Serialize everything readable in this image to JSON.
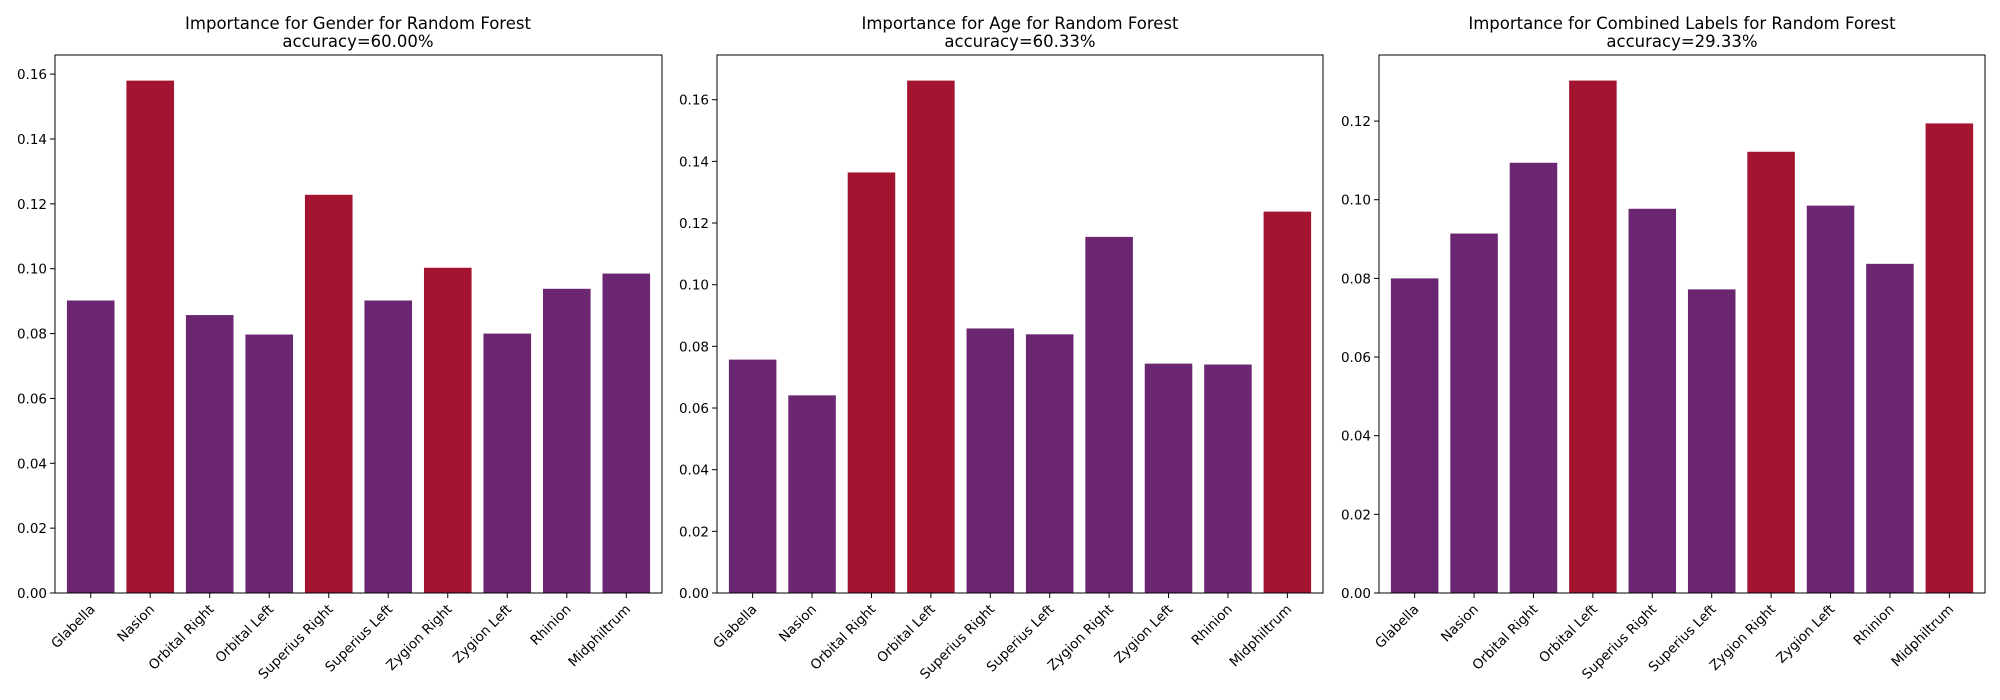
{
  "colors": {
    "normal_bar": "#6b2672",
    "top_bar": "#a31431",
    "axes": "#000000",
    "background": "#ffffff"
  },
  "chart_data": [
    {
      "type": "bar",
      "title": "Importance for Gender for Random Forest",
      "subtitle": "accuracy=60.00%",
      "categories": [
        "Glabella",
        "Nasion",
        "Orbital Right",
        "Orbital Left",
        "Superius Right",
        "Superius Left",
        "Zygion Right",
        "Zygion Left",
        "Rhinion",
        "Midphiltrum"
      ],
      "values": [
        0.0902,
        0.158,
        0.0857,
        0.0797,
        0.1228,
        0.0902,
        0.1003,
        0.08,
        0.0938,
        0.0985
      ],
      "highlighted": [
        false,
        true,
        false,
        false,
        true,
        false,
        true,
        false,
        false,
        false
      ],
      "xlabel": "",
      "ylabel": "",
      "ylim": [
        0,
        0.1659
      ],
      "yticks": [
        "0.00",
        "0.02",
        "0.04",
        "0.06",
        "0.08",
        "0.10",
        "0.12",
        "0.14",
        "0.16"
      ],
      "grid": false
    },
    {
      "type": "bar",
      "title": "Importance for Age for Random Forest",
      "subtitle": "accuracy=60.33%",
      "categories": [
        "Glabella",
        "Nasion",
        "Orbital Right",
        "Orbital Left",
        "Superius Right",
        "Superius Left",
        "Zygion Right",
        "Zygion Left",
        "Rhinion",
        "Midphiltrum"
      ],
      "values": [
        0.0757,
        0.0641,
        0.1364,
        0.1662,
        0.0858,
        0.0839,
        0.1155,
        0.0744,
        0.0741,
        0.1237
      ],
      "highlighted": [
        false,
        false,
        true,
        true,
        false,
        false,
        false,
        false,
        false,
        true
      ],
      "xlabel": "",
      "ylabel": "",
      "ylim": [
        0,
        0.1745
      ],
      "yticks": [
        "0.00",
        "0.02",
        "0.04",
        "0.06",
        "0.08",
        "0.10",
        "0.12",
        "0.14",
        "0.16"
      ],
      "grid": false
    },
    {
      "type": "bar",
      "title": "Importance for Combined Labels for Random Forest",
      "subtitle": "accuracy=29.33%",
      "categories": [
        "Glabella",
        "Nasion",
        "Orbital Right",
        "Orbital Left",
        "Superius Right",
        "Superius Left",
        "Zygion Right",
        "Zygion Left",
        "Rhinion",
        "Midphiltrum"
      ],
      "values": [
        0.08,
        0.0914,
        0.1094,
        0.1303,
        0.0977,
        0.0772,
        0.1122,
        0.0985,
        0.0837,
        0.1194
      ],
      "highlighted": [
        false,
        false,
        false,
        true,
        false,
        false,
        true,
        false,
        false,
        true
      ],
      "xlabel": "",
      "ylabel": "",
      "ylim": [
        0,
        0.1368
      ],
      "yticks": [
        "0.00",
        "0.02",
        "0.04",
        "0.06",
        "0.08",
        "0.10",
        "0.12"
      ],
      "grid": false
    }
  ]
}
